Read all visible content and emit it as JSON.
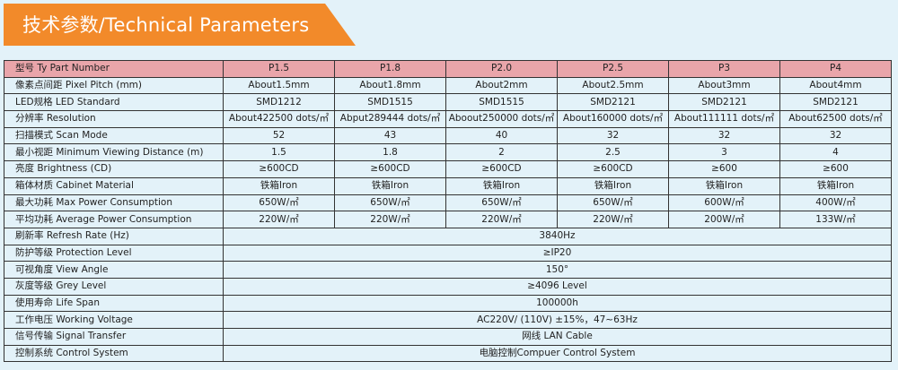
{
  "title": "技术参数/Technical Parameters",
  "colors": {
    "banner": "#f28a2a",
    "header_row": "#e9a5aa",
    "body": "#e3f2f9"
  },
  "table": {
    "header": {
      "label": "型号 Ty Part Number",
      "models": [
        "P1.5",
        "P1.8",
        "P2.0",
        "P2.5",
        "P3",
        "P4"
      ]
    },
    "rows": [
      {
        "label": "像素点间距 Pixel Pitch (mm)",
        "values": [
          "About1.5mm",
          "About1.8mm",
          "About2mm",
          "About2.5mm",
          "About3mm",
          "About4mm"
        ]
      },
      {
        "label": "LED规格 LED  Standard",
        "values": [
          "SMD1212",
          "SMD1515",
          "SMD1515",
          "SMD2121",
          "SMD2121",
          "SMD2121"
        ]
      },
      {
        "label": "分辨率 Resolution",
        "values": [
          "About422500 dots/㎡",
          "Abput289444 dots/㎡",
          "Aboout250000 dots/㎡",
          "About160000 dots/㎡",
          "About111111 dots/㎡",
          "About62500 dots/㎡"
        ]
      },
      {
        "label": "扫描模式 Scan Mode",
        "values": [
          "52",
          "43",
          "40",
          "32",
          "32",
          "32"
        ]
      },
      {
        "label": "最小视距 Minimum Viewing Distance (m)",
        "values": [
          "1.5",
          "1.8",
          "2",
          "2.5",
          "3",
          "4"
        ]
      },
      {
        "label": "亮度 Brightness (CD)",
        "values": [
          "≥600CD",
          "≥600CD",
          "≥600CD",
          "≥600CD",
          "≥600",
          "≥600"
        ]
      },
      {
        "label": "箱体材质 Cabinet Material",
        "values": [
          "铁箱Iron",
          "铁箱Iron",
          "铁箱Iron",
          "铁箱Iron",
          "铁箱Iron",
          "铁箱Iron"
        ]
      },
      {
        "label": "最大功耗 Max Power Consumption",
        "values": [
          "650W/㎡",
          "650W/㎡",
          "650W/㎡",
          "650W/㎡",
          "600W/㎡",
          "400W/㎡"
        ]
      },
      {
        "label": "平均功耗 Average Power Consumption",
        "values": [
          "220W/㎡",
          "220W/㎡",
          "220W/㎡",
          "220W/㎡",
          "200W/㎡",
          "133W/㎡"
        ]
      }
    ],
    "shared_rows": [
      {
        "label": "刷新率 Refresh Rate (Hz)",
        "value": "3840Hz"
      },
      {
        "label": "防护等级 Protection Level",
        "value": "≥IP20"
      },
      {
        "label": "可视角度 View Angle",
        "value": "150°"
      },
      {
        "label": "灰度等级 Grey Level",
        "value": "≥4096 Level"
      },
      {
        "label": "使用寿命 Life Span",
        "value": "100000h"
      },
      {
        "label": "工作电压 Working Voltage",
        "value": "AC220V/ (110V) ±15%，47~63Hz"
      },
      {
        "label": "信号传输 Signal Transfer",
        "value": "网线 LAN Cable"
      },
      {
        "label": "控制系统 Control System",
        "value": "电脑控制Compuer Control System"
      }
    ]
  }
}
